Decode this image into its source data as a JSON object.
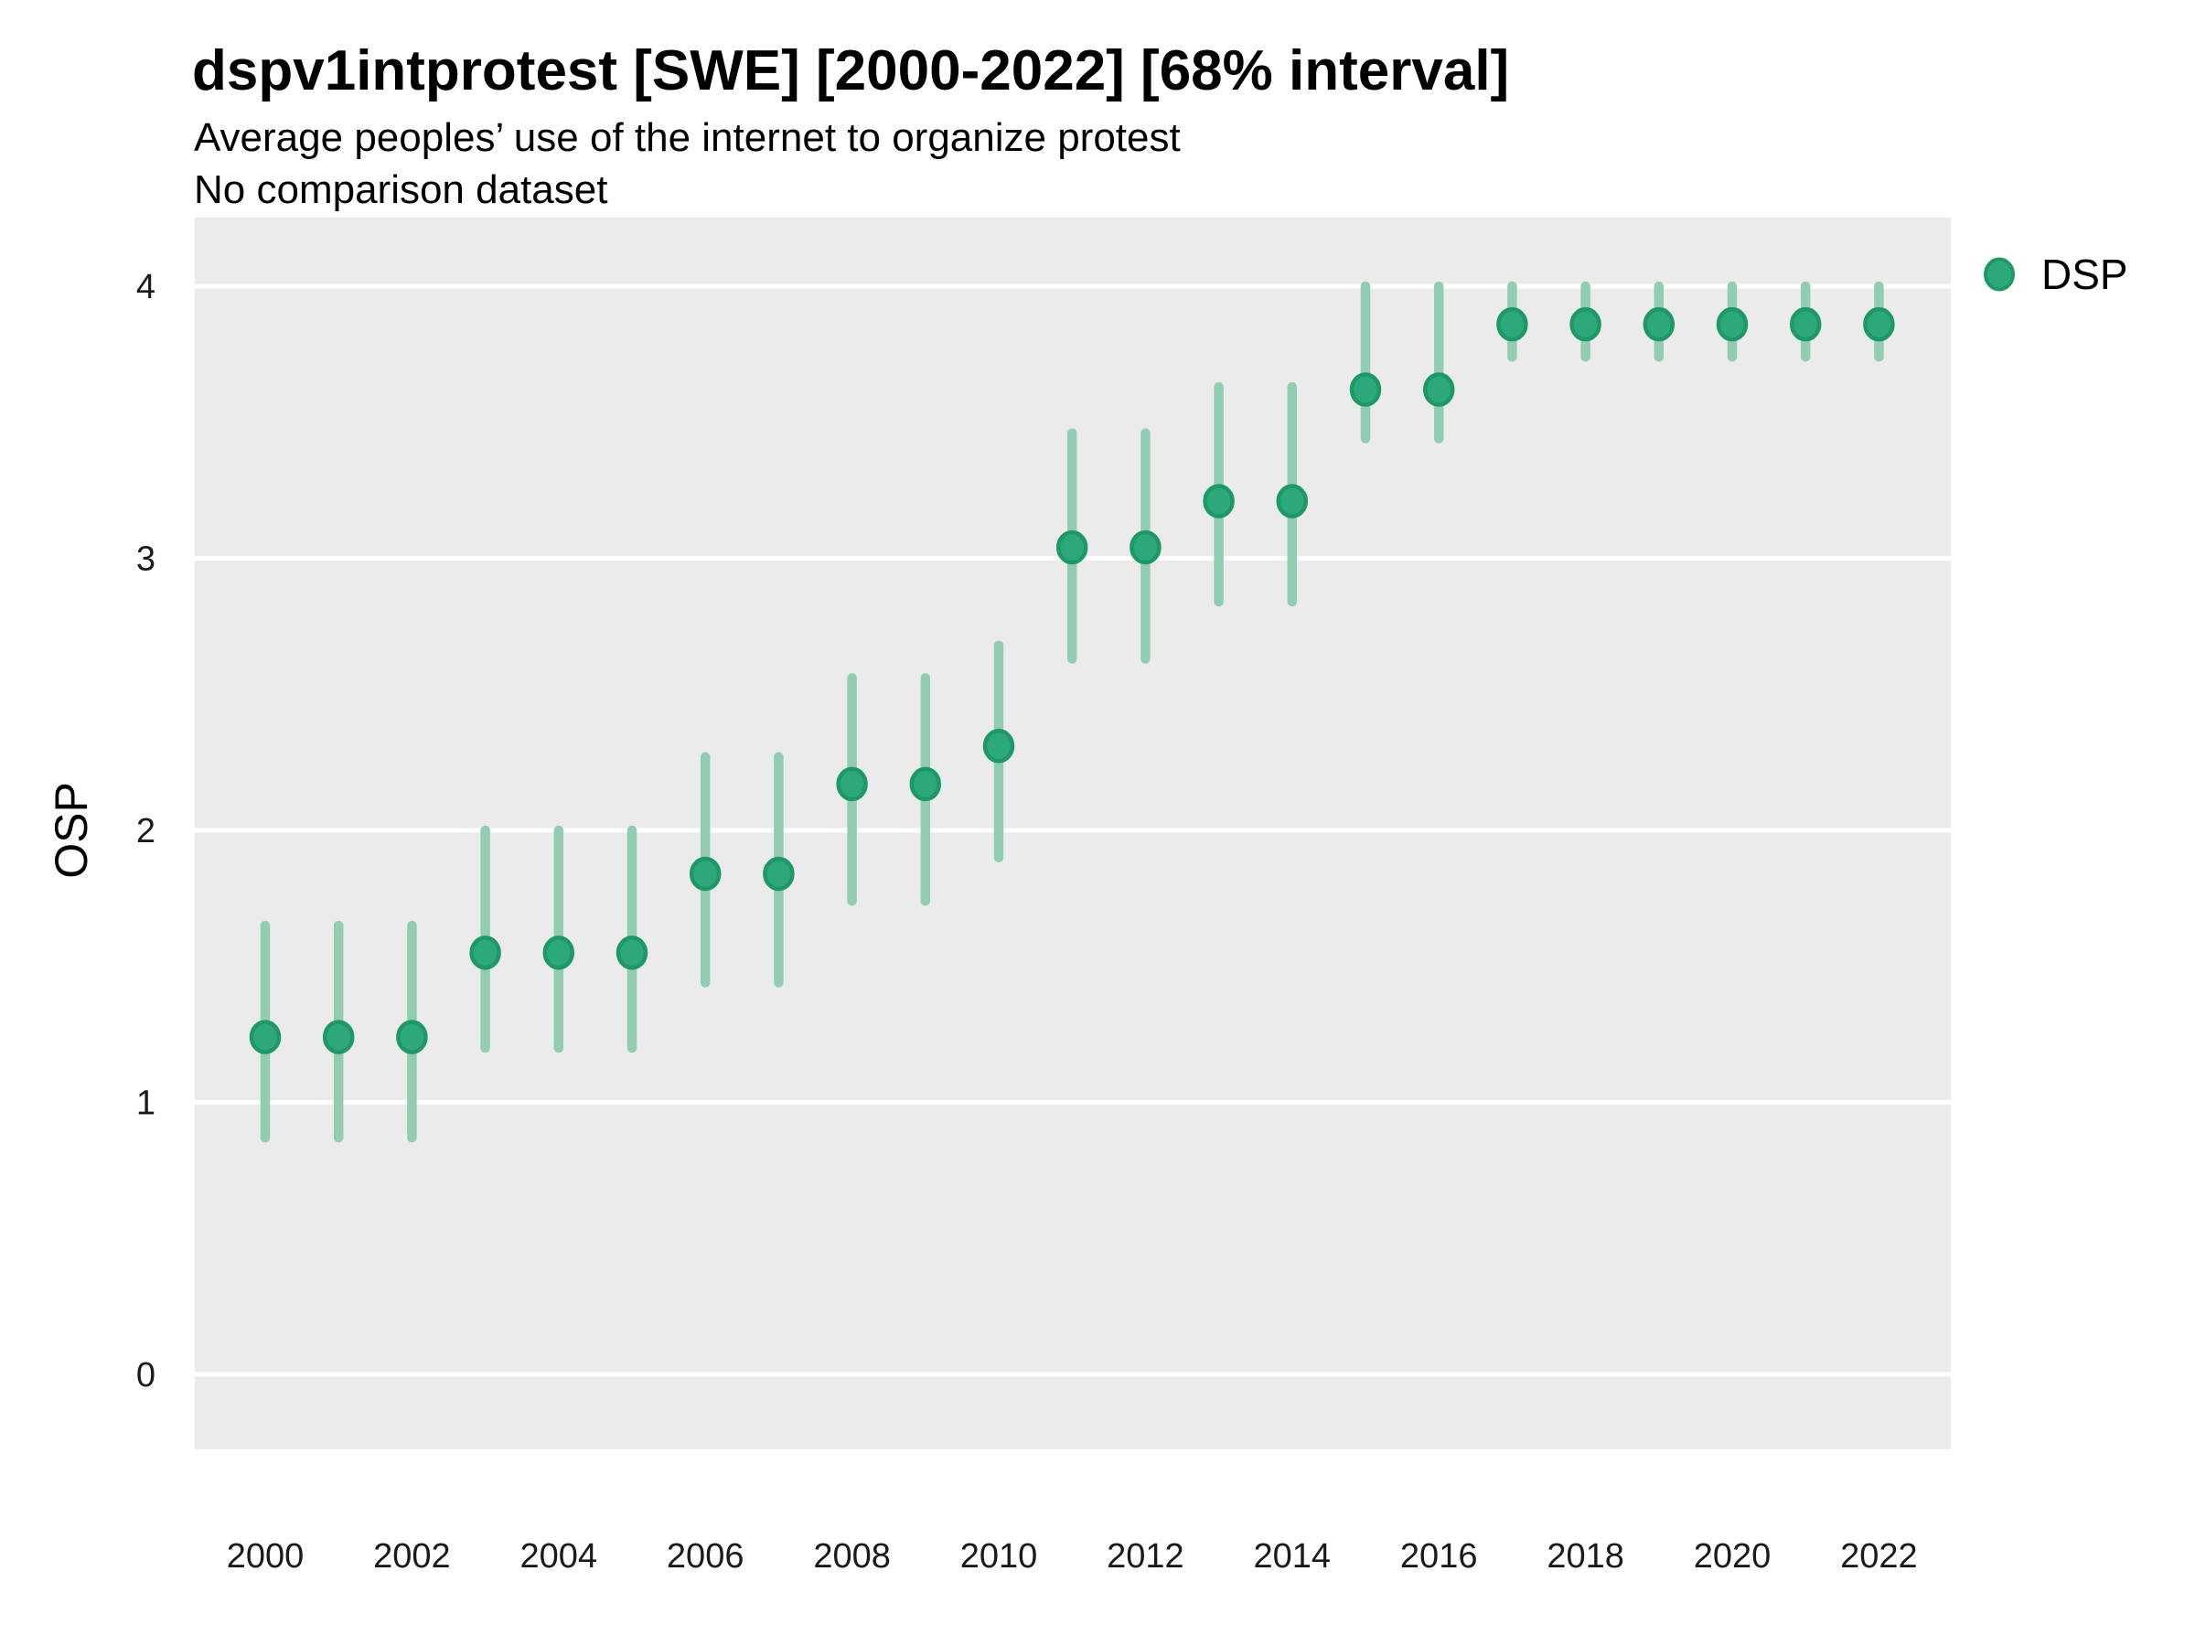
{
  "title": "dspv1intprotest [SWE] [2000-2022] [68% interval]",
  "subtitle": "Average peoples’ use of the internet to organize protest",
  "subtitle2": "No comparison dataset",
  "legend": {
    "label": "DSP",
    "position": "right-top"
  },
  "colors": {
    "point_fill": "#2ca87b",
    "point_stroke": "#1e9966",
    "errorbar": "#90cdb2",
    "panel_background": "#ebebeb",
    "gridline": "#ffffff",
    "text": "#000000",
    "tick_text": "#1a1a1a"
  },
  "chart_data": {
    "type": "scatter",
    "subtype": "pointrange",
    "title": "dspv1intprotest [SWE] [2000-2022] [68% interval]",
    "subtitle": "Average peoples’ use of the internet to organize protest",
    "note": "No comparison dataset",
    "interval": "68% interval",
    "xlabel": "",
    "ylabel": "OSP",
    "ylim": [
      0,
      4
    ],
    "y_ticks": [
      0,
      1,
      2,
      3,
      4
    ],
    "x_tick_labels": [
      2000,
      2002,
      2004,
      2006,
      2008,
      2010,
      2012,
      2014,
      2016,
      2018,
      2020,
      2022
    ],
    "grid": "horizontal-major-only",
    "legend_position": "right-top",
    "x": [
      2000,
      2001,
      2002,
      2003,
      2004,
      2005,
      2006,
      2007,
      2008,
      2009,
      2010,
      2011,
      2012,
      2013,
      2014,
      2015,
      2016,
      2017,
      2018,
      2019,
      2020,
      2021,
      2022
    ],
    "series": [
      {
        "name": "DSP",
        "values": [
          1.24,
          1.24,
          1.24,
          1.55,
          1.55,
          1.55,
          1.84,
          1.84,
          2.17,
          2.17,
          2.31,
          3.04,
          3.04,
          3.21,
          3.21,
          3.62,
          3.62,
          3.86,
          3.86,
          3.86,
          3.86,
          3.86,
          3.86
        ],
        "ci_low": [
          0.87,
          0.87,
          0.87,
          1.2,
          1.2,
          1.2,
          1.44,
          1.44,
          1.74,
          1.74,
          1.9,
          2.63,
          2.63,
          2.84,
          2.84,
          3.44,
          3.44,
          3.74,
          3.74,
          3.74,
          3.74,
          3.74,
          3.74
        ],
        "ci_high": [
          1.65,
          1.65,
          1.65,
          2.0,
          2.0,
          2.0,
          2.27,
          2.27,
          2.56,
          2.56,
          2.68,
          3.46,
          3.46,
          3.63,
          3.63,
          4.0,
          4.0,
          4.0,
          4.0,
          4.0,
          4.0,
          4.0,
          4.0
        ]
      }
    ]
  }
}
